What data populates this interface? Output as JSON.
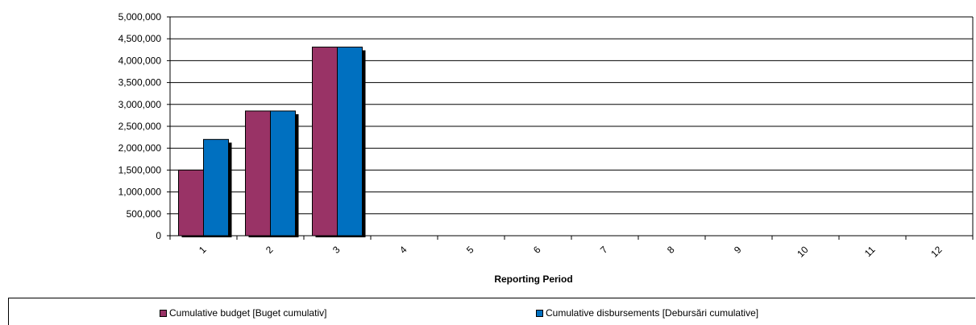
{
  "chart_data": {
    "type": "bar",
    "categories": [
      "1",
      "2",
      "3",
      "4",
      "5",
      "6",
      "7",
      "8",
      "9",
      "10",
      "11",
      "12"
    ],
    "series": [
      {
        "name": "Cumulative budget [Buget cumulativ]",
        "color": "#993366",
        "values": [
          1500000,
          2850000,
          4310000,
          null,
          null,
          null,
          null,
          null,
          null,
          null,
          null,
          null
        ]
      },
      {
        "name": "Cumulative disbursements [Debursări cumulative]",
        "color": "#0070C0",
        "values": [
          2200000,
          2850000,
          4310000,
          null,
          null,
          null,
          null,
          null,
          null,
          null,
          null,
          null
        ]
      }
    ],
    "xlabel": "Reporting Period",
    "ylabel": "",
    "ylim": [
      0,
      5000000
    ],
    "yticks": [
      "0",
      "500,000",
      "1,000,000",
      "1,500,000",
      "2,000,000",
      "2,500,000",
      "3,000,000",
      "3,500,000",
      "4,000,000",
      "4,500,000",
      "5,000,000"
    ],
    "grid": true,
    "legend_position": "bottom"
  }
}
